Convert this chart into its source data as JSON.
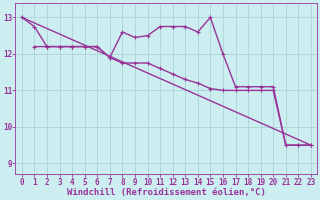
{
  "background_color": "#cceef0",
  "plot_bg_color": "#cceef0",
  "grid_color": "#aad4d8",
  "line_color": "#993399",
  "xlabel": "Windchill (Refroidissement éolien,°C)",
  "xlim": [
    -0.5,
    23.5
  ],
  "ylim": [
    8.7,
    13.4
  ],
  "yticks": [
    9,
    10,
    11,
    12,
    13
  ],
  "xticks": [
    0,
    1,
    2,
    3,
    4,
    5,
    6,
    7,
    8,
    9,
    10,
    11,
    12,
    13,
    14,
    15,
    16,
    17,
    18,
    19,
    20,
    21,
    22,
    23
  ],
  "line1_x": [
    0,
    1,
    2,
    3,
    4,
    5,
    6,
    7,
    8,
    9,
    10,
    11,
    12,
    13,
    14,
    15,
    16,
    17,
    18,
    19,
    20,
    21,
    22,
    23
  ],
  "line1_y": [
    13.0,
    12.75,
    12.2,
    12.2,
    12.2,
    12.2,
    12.2,
    11.9,
    12.6,
    12.45,
    12.5,
    12.75,
    12.75,
    12.75,
    12.6,
    13.0,
    12.0,
    11.1,
    11.1,
    11.1,
    11.1,
    9.5,
    9.5,
    9.5
  ],
  "line2_x": [
    1,
    2,
    3,
    4,
    5,
    6,
    7,
    8,
    9,
    10,
    11,
    12,
    13,
    14,
    15,
    16,
    17,
    18,
    19,
    20,
    21,
    22,
    23
  ],
  "line2_y": [
    12.2,
    12.2,
    12.2,
    12.2,
    12.2,
    12.2,
    11.9,
    11.75,
    11.75,
    11.75,
    11.6,
    11.45,
    11.3,
    11.2,
    11.05,
    11.0,
    11.0,
    11.0,
    11.0,
    11.0,
    9.5,
    9.5,
    9.5
  ],
  "line3_x": [
    0,
    23
  ],
  "line3_y": [
    13.0,
    9.5
  ],
  "marker_size": 3.5,
  "line_width": 1.0,
  "tick_fontsize": 5.5,
  "xlabel_fontsize": 6.5
}
